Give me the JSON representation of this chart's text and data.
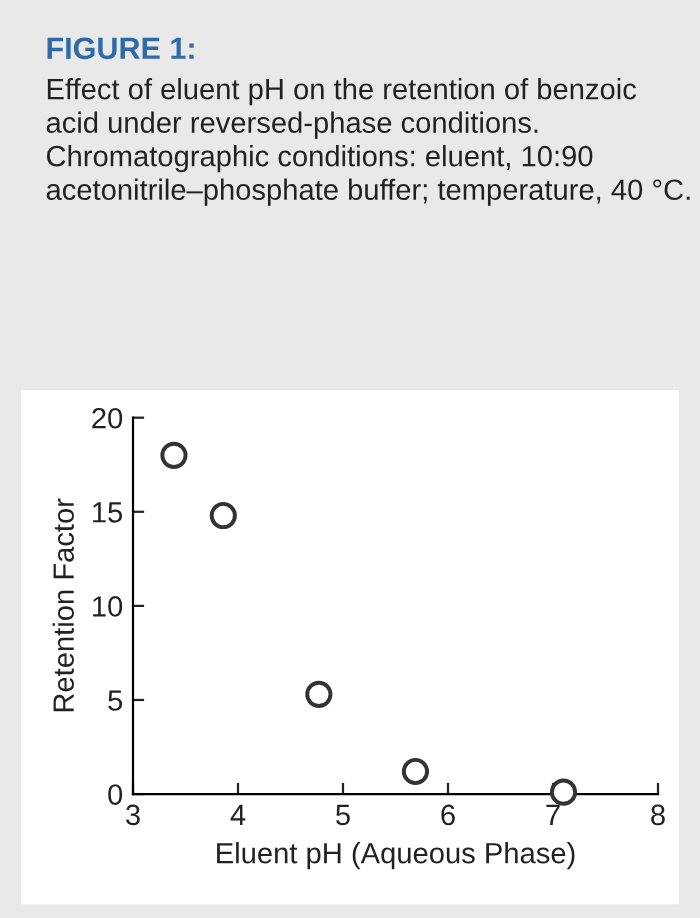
{
  "chart_data": {
    "type": "scatter",
    "title": "FIGURE 1:",
    "subtitle": "Effect of eluent pH on the retention of benzoic acid under reversed-phase conditions. Chromatographic conditions: eluent, 10:90 acetonitrile–phosphate buffer; temperature, 40 °C.",
    "xlabel": "Eluent pH (Aqueous Phase)",
    "ylabel": "Retention Factor",
    "x": [
      3.39,
      3.86,
      4.77,
      5.69,
      7.1
    ],
    "series": [
      {
        "color": "#333333",
        "values": [
          18.0,
          14.8,
          5.3,
          1.2,
          0.1
        ]
      }
    ],
    "marker": "circle",
    "xlim": [
      3,
      8
    ],
    "ylim": [
      0,
      20
    ],
    "xticks": [
      3,
      4,
      5,
      6,
      7,
      8
    ],
    "yticks": [
      0,
      5,
      10,
      15,
      20
    ],
    "grid": false,
    "legend": false
  }
}
